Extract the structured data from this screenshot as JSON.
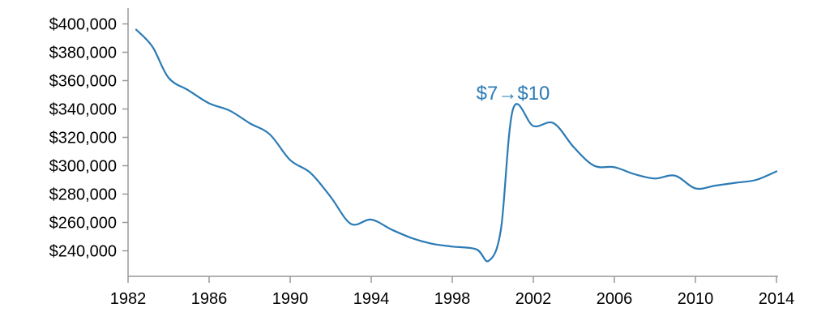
{
  "chart_data": {
    "type": "line",
    "title": "",
    "xlabel": "",
    "ylabel": "",
    "xlim": [
      1982,
      2014
    ],
    "ylim": [
      222000,
      410000
    ],
    "grid": false,
    "legend": "none",
    "x_ticks": [
      "1982",
      "1986",
      "1990",
      "1994",
      "1998",
      "2002",
      "2006",
      "2010",
      "2014"
    ],
    "y_ticks": [
      "$240,000",
      "$260,000",
      "$280,000",
      "$300,000",
      "$320,000",
      "$340,000",
      "$360,000",
      "$380,000",
      "$400,000"
    ],
    "colors": {
      "line": "#2b7bb5",
      "annotation": "#2b7bb5",
      "axis": "#999999"
    },
    "series": [
      {
        "x": [
          1982.4,
          1983.2,
          1984,
          1985,
          1986,
          1987,
          1988,
          1989,
          1990,
          1991,
          1992,
          1993,
          1994,
          1995,
          1996,
          1997,
          1998,
          1999.2,
          1999.8,
          2000.4,
          2001,
          2002,
          2003,
          2004,
          2005,
          2006,
          2007,
          2008,
          2009,
          2010,
          2011,
          2012,
          2013,
          2014
        ],
        "values": [
          396000,
          384000,
          362000,
          353000,
          344000,
          339000,
          330000,
          322000,
          304000,
          295000,
          278000,
          259000,
          262000,
          255000,
          249000,
          245000,
          243000,
          241000,
          233000,
          255000,
          340000,
          328000,
          330000,
          313000,
          300000,
          299000,
          294000,
          291000,
          293000,
          284000,
          286000,
          288000,
          290000,
          296000
        ]
      }
    ],
    "annotations": [
      {
        "text": "$7→$10",
        "x": 2001,
        "y": 341000
      }
    ]
  }
}
